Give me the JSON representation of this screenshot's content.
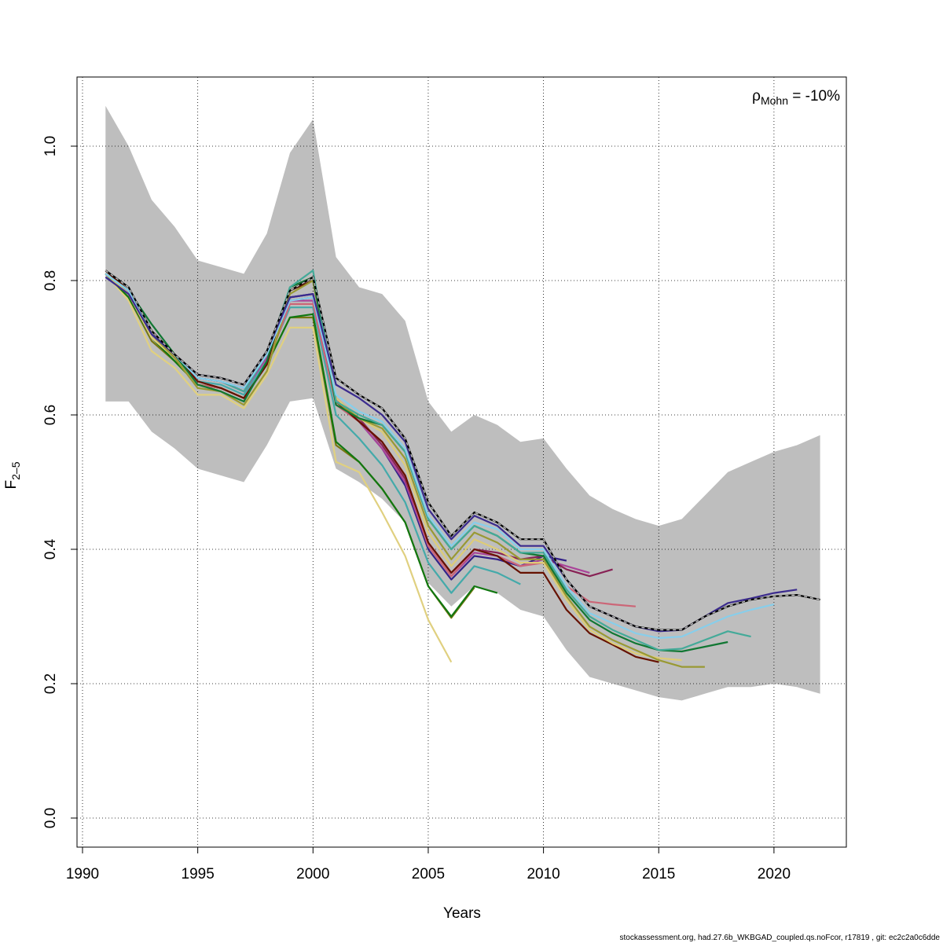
{
  "chart_data": {
    "type": "line",
    "xlabel": "Years",
    "ylabel": {
      "base": "F",
      "subscript": "2–5"
    },
    "annotation": {
      "symbol": "ρ",
      "subscript": "Mohn",
      "text": " = -10%"
    },
    "footer": "stockassessment.org, had.27.6b_WKBGAD_coupled.qs.noFcor, r17819 , git: ec2c2a0c6dde",
    "xlim": [
      1990,
      2023
    ],
    "ylim": [
      0,
      1.05
    ],
    "x_ticks": [
      "1990",
      "1995",
      "2000",
      "2005",
      "2010",
      "2015",
      "2020"
    ],
    "x_tick_values": [
      1990,
      1995,
      2000,
      2005,
      2010,
      2015,
      2020
    ],
    "y_ticks": [
      "0.0",
      "0.2",
      "0.4",
      "0.6",
      "0.8",
      "1.0"
    ],
    "y_tick_values": [
      0.0,
      0.2,
      0.4,
      0.6,
      0.8,
      1.0
    ],
    "grid": true,
    "confidence_band": {
      "color": "#bebebe",
      "x": [
        1991,
        1992,
        1993,
        1994,
        1995,
        1996,
        1997,
        1998,
        1999,
        2000,
        2001,
        2002,
        2003,
        2004,
        2005,
        2006,
        2007,
        2008,
        2009,
        2010,
        2011,
        2012,
        2013,
        2014,
        2015,
        2016,
        2017,
        2018,
        2019,
        2020,
        2021,
        2022
      ],
      "upper": [
        1.06,
        1.0,
        0.92,
        0.88,
        0.83,
        0.82,
        0.81,
        0.87,
        0.99,
        1.04,
        0.835,
        0.79,
        0.78,
        0.74,
        0.62,
        0.575,
        0.6,
        0.585,
        0.56,
        0.565,
        0.52,
        0.48,
        0.46,
        0.445,
        0.435,
        0.445,
        0.48,
        0.515,
        0.53,
        0.545,
        0.555,
        0.57
      ],
      "lower": [
        0.62,
        0.62,
        0.575,
        0.55,
        0.52,
        0.51,
        0.5,
        0.555,
        0.62,
        0.625,
        0.52,
        0.5,
        0.475,
        0.44,
        0.35,
        0.315,
        0.345,
        0.335,
        0.31,
        0.3,
        0.25,
        0.21,
        0.2,
        0.19,
        0.18,
        0.175,
        0.185,
        0.195,
        0.195,
        0.2,
        0.195,
        0.185
      ]
    },
    "series": [
      {
        "color": "#000000",
        "dashed": true,
        "x0": 1991,
        "values": [
          0.815,
          0.79,
          0.725,
          0.69,
          0.66,
          0.655,
          0.645,
          0.695,
          0.785,
          0.805,
          0.655,
          0.63,
          0.61,
          0.565,
          0.47,
          0.42,
          0.455,
          0.44,
          0.415,
          0.415,
          0.355,
          0.315,
          0.3,
          0.285,
          0.28,
          0.28,
          0.3,
          0.315,
          0.325,
          0.33,
          0.332,
          0.325
        ]
      },
      {
        "color": "#3b2b8e",
        "x0": 1991,
        "values": [
          0.805,
          0.78,
          0.72,
          0.69,
          0.66,
          0.655,
          0.645,
          0.695,
          0.775,
          0.78,
          0.645,
          0.625,
          0.6,
          0.56,
          0.46,
          0.415,
          0.45,
          0.435,
          0.405,
          0.405,
          0.355,
          0.315,
          0.3,
          0.285,
          0.278,
          0.28,
          0.3,
          0.32,
          0.327,
          0.335,
          0.34
        ]
      },
      {
        "color": "#87ceeb",
        "x0": 1991,
        "values": [
          0.81,
          0.785,
          0.72,
          0.69,
          0.655,
          0.65,
          0.64,
          0.69,
          0.77,
          0.775,
          0.63,
          0.605,
          0.59,
          0.55,
          0.45,
          0.405,
          0.44,
          0.43,
          0.4,
          0.4,
          0.345,
          0.305,
          0.29,
          0.275,
          0.268,
          0.27,
          0.285,
          0.3,
          0.31,
          0.318
        ]
      },
      {
        "color": "#44aa99",
        "x0": 1991,
        "values": [
          0.81,
          0.785,
          0.72,
          0.69,
          0.655,
          0.65,
          0.635,
          0.69,
          0.79,
          0.815,
          0.62,
          0.6,
          0.585,
          0.545,
          0.445,
          0.4,
          0.435,
          0.42,
          0.395,
          0.395,
          0.34,
          0.3,
          0.28,
          0.265,
          0.25,
          0.252,
          0.265,
          0.278,
          0.27
        ]
      },
      {
        "color": "#117733",
        "x0": 1991,
        "values": [
          0.81,
          0.785,
          0.735,
          0.69,
          0.645,
          0.635,
          0.62,
          0.68,
          0.79,
          0.805,
          0.615,
          0.595,
          0.585,
          0.545,
          0.445,
          0.4,
          0.435,
          0.42,
          0.395,
          0.39,
          0.335,
          0.295,
          0.275,
          0.26,
          0.25,
          0.248,
          0.255,
          0.262
        ]
      },
      {
        "color": "#999933",
        "x0": 1991,
        "values": [
          0.81,
          0.785,
          0.72,
          0.685,
          0.64,
          0.635,
          0.615,
          0.665,
          0.78,
          0.8,
          0.62,
          0.595,
          0.58,
          0.535,
          0.435,
          0.385,
          0.425,
          0.41,
          0.385,
          0.385,
          0.33,
          0.285,
          0.265,
          0.25,
          0.235,
          0.225,
          0.225
        ]
      },
      {
        "color": "#ddcc77",
        "x0": 1991,
        "values": [
          0.81,
          0.78,
          0.715,
          0.685,
          0.645,
          0.635,
          0.615,
          0.665,
          0.785,
          0.805,
          0.625,
          0.595,
          0.575,
          0.525,
          0.425,
          0.375,
          0.415,
          0.4,
          0.38,
          0.38,
          0.325,
          0.28,
          0.26,
          0.245,
          0.238,
          0.235
        ]
      },
      {
        "color": "#661100",
        "x0": 1991,
        "values": [
          0.815,
          0.785,
          0.72,
          0.69,
          0.65,
          0.64,
          0.625,
          0.675,
          0.785,
          0.8,
          0.62,
          0.59,
          0.56,
          0.51,
          0.41,
          0.365,
          0.4,
          0.39,
          0.365,
          0.365,
          0.31,
          0.275,
          0.258,
          0.24,
          0.232
        ]
      },
      {
        "color": "#cc6677",
        "x0": 1991,
        "values": [
          0.81,
          0.78,
          0.715,
          0.685,
          0.645,
          0.64,
          0.625,
          0.675,
          0.765,
          0.765,
          0.615,
          0.59,
          0.56,
          0.51,
          0.405,
          0.36,
          0.4,
          0.39,
          0.375,
          0.38,
          0.345,
          0.322,
          0.318,
          0.315
        ]
      },
      {
        "color": "#882255",
        "x0": 1991,
        "values": [
          0.81,
          0.78,
          0.725,
          0.69,
          0.655,
          0.65,
          0.64,
          0.69,
          0.77,
          0.775,
          0.625,
          0.595,
          0.555,
          0.505,
          0.41,
          0.365,
          0.4,
          0.395,
          0.385,
          0.39,
          0.37,
          0.36,
          0.37
        ]
      },
      {
        "color": "#aa4499",
        "x0": 1991,
        "values": [
          0.81,
          0.78,
          0.72,
          0.685,
          0.655,
          0.65,
          0.635,
          0.685,
          0.77,
          0.77,
          0.625,
          0.59,
          0.55,
          0.5,
          0.405,
          0.36,
          0.395,
          0.39,
          0.375,
          0.385,
          0.375,
          0.365
        ]
      },
      {
        "color": "#332288",
        "x0": 1991,
        "values": [
          0.81,
          0.78,
          0.72,
          0.685,
          0.655,
          0.65,
          0.635,
          0.685,
          0.775,
          0.78,
          0.625,
          0.59,
          0.55,
          0.495,
          0.4,
          0.355,
          0.39,
          0.385,
          0.375,
          0.39,
          0.383
        ]
      },
      {
        "color": "#44aaaa",
        "x0": 1991,
        "values": [
          0.81,
          0.78,
          0.715,
          0.685,
          0.65,
          0.645,
          0.63,
          0.68,
          0.76,
          0.76,
          0.6,
          0.565,
          0.525,
          0.47,
          0.38,
          0.335,
          0.375,
          0.365,
          0.348
        ]
      },
      {
        "color": "#117711",
        "x0": 1991,
        "values": [
          0.81,
          0.775,
          0.715,
          0.68,
          0.645,
          0.64,
          0.625,
          0.675,
          0.745,
          0.75,
          0.56,
          0.53,
          0.49,
          0.44,
          0.345,
          0.3,
          0.345,
          0.335
        ]
      },
      {
        "color": "#777711",
        "x0": 1991,
        "values": [
          0.81,
          0.775,
          0.71,
          0.68,
          0.645,
          0.64,
          0.625,
          0.675,
          0.745,
          0.745,
          0.555,
          0.53,
          0.49,
          0.44,
          0.345,
          0.298,
          0.343
        ]
      },
      {
        "color": "#e0d080",
        "x0": 1991,
        "values": [
          0.81,
          0.77,
          0.695,
          0.67,
          0.63,
          0.63,
          0.61,
          0.66,
          0.73,
          0.73,
          0.53,
          0.515,
          0.455,
          0.39,
          0.295,
          0.232
        ]
      }
    ]
  }
}
